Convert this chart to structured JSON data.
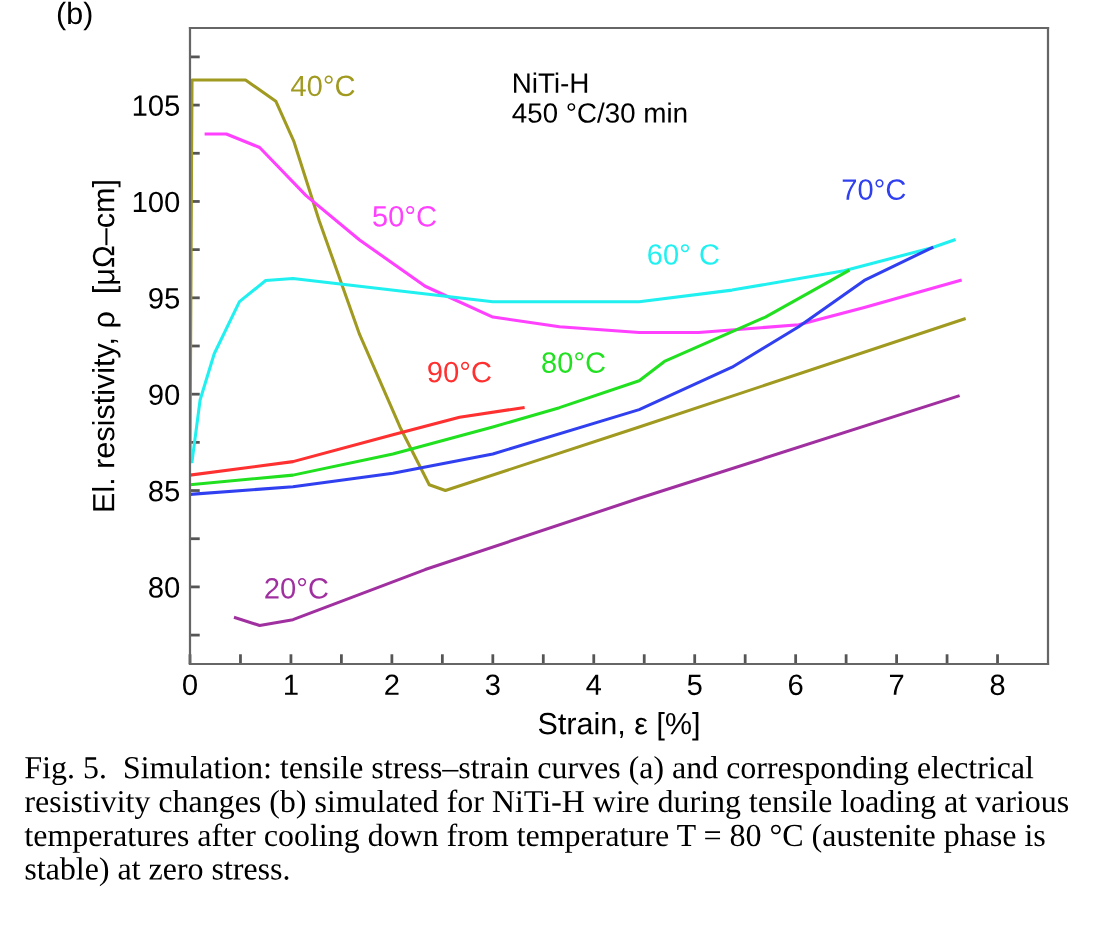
{
  "chart_data": {
    "type": "line",
    "xlabel": "Strain, ε [%]",
    "ylabel": "El. resistivity, ρ  [μΩ–cm]",
    "xlim": [
      0,
      8.5
    ],
    "ylim": [
      76,
      109
    ],
    "xticks": [
      0,
      {
        "value": 0.5,
        "label": null
      },
      1,
      {
        "value": 1.5,
        "label": null
      },
      2,
      {
        "value": 2.5,
        "label": null
      },
      3,
      {
        "value": 3.5,
        "label": null
      },
      4,
      {
        "value": 4.5,
        "label": null
      },
      5,
      {
        "value": 5.5,
        "label": null
      },
      6,
      {
        "value": 6.5,
        "label": null
      },
      7,
      {
        "value": 7.5,
        "label": null
      },
      8
    ],
    "yticks": [
      {
        "value": 77.5,
        "label": null
      },
      80,
      {
        "value": 82.5,
        "label": null
      },
      85,
      {
        "value": 87.5,
        "label": null
      },
      90,
      {
        "value": 92.5,
        "label": null
      },
      95,
      {
        "value": 97.5,
        "label": null
      },
      100,
      {
        "value": 102.5,
        "label": null
      },
      105,
      {
        "value": 107.5,
        "label": null
      }
    ],
    "grid": false,
    "legend": false,
    "marker": "none",
    "line_style": "solid",
    "series": [
      {
        "name": "40°C",
        "color": "#a09a20",
        "x": [
          0,
          0.02,
          0.55,
          0.85,
          1.03,
          1.28,
          1.68,
          2.08,
          2.37,
          2.53,
          4.45,
          7.67
        ],
        "values": [
          86.5,
          106.3,
          106.3,
          105.2,
          103.1,
          99,
          93.1,
          88.3,
          85.3,
          85.0,
          88.3,
          93.9
        ]
      },
      {
        "name": "50°C",
        "color": "#ff40ff",
        "x": [
          0.16,
          0.36,
          0.69,
          1.15,
          1.68,
          2.33,
          3,
          3.66,
          4.45,
          5.04,
          6.03,
          6.68,
          7.63
        ],
        "values": [
          103.5,
          103.5,
          102.8,
          100.3,
          98,
          95.6,
          94,
          93.5,
          93.2,
          93.2,
          93.6,
          94.5,
          95.9
        ]
      },
      {
        "name": "60° C",
        "color": "#20f0f0",
        "x": [
          0.02,
          0.1,
          0.24,
          0.49,
          0.75,
          1.02,
          1.68,
          3,
          4.45,
          5.37,
          6.48,
          7.35,
          7.57
        ],
        "values": [
          86.5,
          89.7,
          92.1,
          94.8,
          95.9,
          96,
          95.6,
          94.8,
          94.8,
          95.4,
          96.4,
          97.6,
          98
        ]
      },
      {
        "name": "70°C",
        "color": "#3040f0",
        "x": [
          0,
          1.02,
          2.01,
          3,
          4.45,
          5.37,
          6.03,
          6.68,
          7.35
        ],
        "values": [
          84.8,
          85.2,
          85.9,
          86.9,
          89.2,
          91.4,
          93.5,
          95.9,
          97.6
        ]
      },
      {
        "name": "80°C",
        "color": "#20e020",
        "x": [
          0,
          1.02,
          2.01,
          3,
          3.66,
          4.45,
          4.7,
          5.7,
          6.52
        ],
        "values": [
          85.3,
          85.8,
          86.9,
          88.3,
          89.3,
          90.7,
          91.7,
          94,
          96.4
        ]
      },
      {
        "name": "90°C",
        "color": "#ff3030",
        "x": [
          0,
          1.02,
          2.01,
          2.67,
          3.3
        ],
        "values": [
          85.8,
          86.5,
          87.9,
          88.8,
          89.3
        ]
      },
      {
        "name": "20°C",
        "color": "#a030a0",
        "x": [
          0.45,
          0.69,
          1.02,
          2.33,
          4.45,
          7.61
        ],
        "values": [
          78.4,
          78,
          78.3,
          80.9,
          84.6,
          89.9
        ]
      }
    ],
    "annotations": [
      "(b)",
      "NiTi-H\n450 °C/30 min",
      "Fig. 5.  Simulation: tensile stress–strain curves (a) and corresponding electrical resistivity changes (b) simulated for NiTi-H wire during tensile loading at various temperatures after cooling down from temperature T = 80 °C (austenite phase is stable) at zero stress."
    ]
  }
}
